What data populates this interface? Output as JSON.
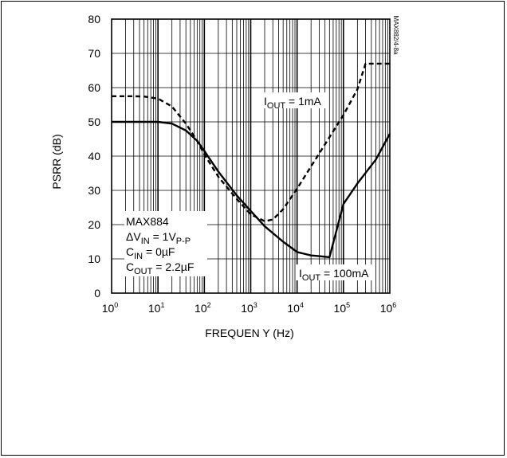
{
  "chart_data": {
    "type": "line",
    "figure_id": "MAX882/4-8a",
    "xlabel": "FREQUEN Y (Hz)",
    "ylabel": "PSRR (dB)",
    "xscale": "log",
    "xlim": [
      1,
      1000000
    ],
    "ylim": [
      0,
      80
    ],
    "x_tick_labels": [
      {
        "base": "10",
        "exp": "0"
      },
      {
        "base": "10",
        "exp": "1"
      },
      {
        "base": "10",
        "exp": "2"
      },
      {
        "base": "10",
        "exp": "3"
      },
      {
        "base": "10",
        "exp": "4"
      },
      {
        "base": "10",
        "exp": "5"
      },
      {
        "base": "10",
        "exp": "6"
      }
    ],
    "y_ticks": [
      0,
      10,
      20,
      30,
      40,
      50,
      60,
      70,
      80
    ],
    "grid": true,
    "conditions": [
      {
        "pre": "MAX884",
        "sub": "",
        "post": ""
      },
      {
        "pre": "ΔV",
        "sub": "IN",
        "post": " = 1V",
        "sub2": "P-P"
      },
      {
        "pre": "C",
        "sub": "IN",
        "post": " = 0µF"
      },
      {
        "pre": "C",
        "sub": "OUT",
        "post": " = 2.2µF"
      }
    ],
    "series": [
      {
        "name": {
          "pre": "I",
          "sub": "OUT",
          "post": " = 1mA"
        },
        "style": "dashed",
        "x": [
          1,
          3,
          5,
          10,
          20,
          40,
          70,
          100,
          200,
          500,
          1000,
          2000,
          3000,
          5000,
          10000,
          20000,
          50000,
          100000,
          200000,
          300000,
          500000,
          1000000
        ],
        "y": [
          57.5,
          57.5,
          57.4,
          56.8,
          54.5,
          49.5,
          44.5,
          40.5,
          34.0,
          27.5,
          23.0,
          21.0,
          21.5,
          24.5,
          30.5,
          37.0,
          45.5,
          52.0,
          59.5,
          67.0,
          67.0,
          67.0
        ]
      },
      {
        "name": {
          "pre": "I",
          "sub": "OUT",
          "post": " = 100mA"
        },
        "style": "solid",
        "x": [
          1,
          3,
          10,
          20,
          40,
          70,
          100,
          200,
          500,
          1000,
          2000,
          5000,
          10000,
          20000,
          30000,
          50000,
          70000,
          100000,
          200000,
          500000,
          1000000
        ],
        "y": [
          50,
          50,
          50,
          49.5,
          47.5,
          44.5,
          41.5,
          35.5,
          28.5,
          24.0,
          19.5,
          15.0,
          12.0,
          11.0,
          10.8,
          10.5,
          18.0,
          26.0,
          32.0,
          39.0,
          46.5
        ]
      }
    ]
  }
}
